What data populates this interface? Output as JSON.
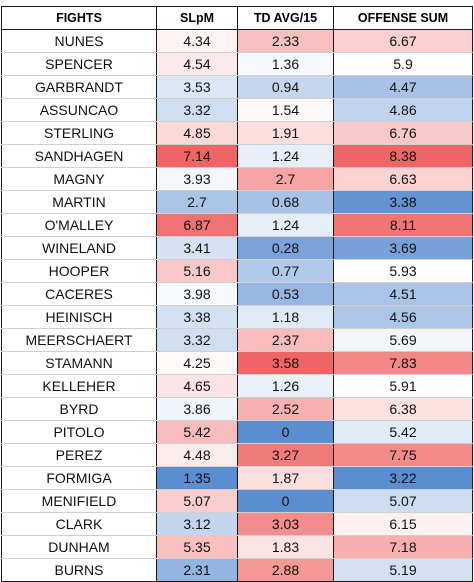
{
  "header": {
    "fights": "FIGHTS",
    "slpm": "SLpM",
    "td": "TD AVG/15",
    "offense": "OFFENSE SUM"
  },
  "colors": {
    "low": "#5b8dd1",
    "mid": "#ffffff",
    "high": "#ef6464"
  },
  "rows": [
    {
      "name": "NUNES",
      "slpm": "4.34",
      "td": "2.33",
      "sum": "6.67"
    },
    {
      "name": "SPENCER",
      "slpm": "4.54",
      "td": "1.36",
      "sum": "5.9"
    },
    {
      "name": "GARBRANDT",
      "slpm": "3.53",
      "td": "0.94",
      "sum": "4.47"
    },
    {
      "name": "ASSUNCAO",
      "slpm": "3.32",
      "td": "1.54",
      "sum": "4.86"
    },
    {
      "name": "STERLING",
      "slpm": "4.85",
      "td": "1.91",
      "sum": "6.76"
    },
    {
      "name": "SANDHAGEN",
      "slpm": "7.14",
      "td": "1.24",
      "sum": "8.38"
    },
    {
      "name": "MAGNY",
      "slpm": "3.93",
      "td": "2.7",
      "sum": "6.63"
    },
    {
      "name": "MARTIN",
      "slpm": "2.7",
      "td": "0.68",
      "sum": "3.38"
    },
    {
      "name": "O'MALLEY",
      "slpm": "6.87",
      "td": "1.24",
      "sum": "8.11"
    },
    {
      "name": "WINELAND",
      "slpm": "3.41",
      "td": "0.28",
      "sum": "3.69"
    },
    {
      "name": "HOOPER",
      "slpm": "5.16",
      "td": "0.77",
      "sum": "5.93"
    },
    {
      "name": "CACERES",
      "slpm": "3.98",
      "td": "0.53",
      "sum": "4.51"
    },
    {
      "name": "HEINISCH",
      "slpm": "3.38",
      "td": "1.18",
      "sum": "4.56"
    },
    {
      "name": "MEERSCHAERT",
      "slpm": "3.32",
      "td": "2.37",
      "sum": "5.69"
    },
    {
      "name": "STAMANN",
      "slpm": "4.25",
      "td": "3.58",
      "sum": "7.83"
    },
    {
      "name": "KELLEHER",
      "slpm": "4.65",
      "td": "1.26",
      "sum": "5.91"
    },
    {
      "name": "BYRD",
      "slpm": "3.86",
      "td": "2.52",
      "sum": "6.38"
    },
    {
      "name": "PITOLO",
      "slpm": "5.42",
      "td": "0",
      "sum": "5.42"
    },
    {
      "name": "PEREZ",
      "slpm": "4.48",
      "td": "3.27",
      "sum": "7.75"
    },
    {
      "name": "FORMIGA",
      "slpm": "1.35",
      "td": "1.87",
      "sum": "3.22"
    },
    {
      "name": "MENIFIELD",
      "slpm": "5.07",
      "td": "0",
      "sum": "5.07"
    },
    {
      "name": "CLARK",
      "slpm": "3.12",
      "td": "3.03",
      "sum": "6.15"
    },
    {
      "name": "DUNHAM",
      "slpm": "5.35",
      "td": "1.83",
      "sum": "7.18"
    },
    {
      "name": "BURNS",
      "slpm": "2.31",
      "td": "2.88",
      "sum": "5.19"
    }
  ]
}
